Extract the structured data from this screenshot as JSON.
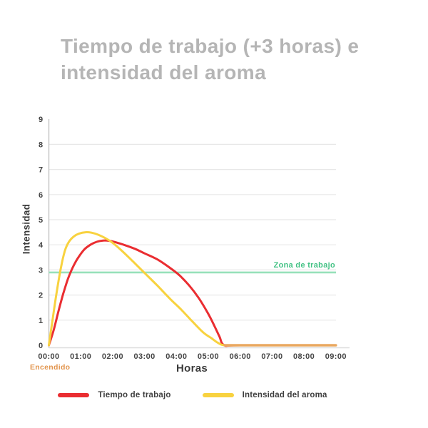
{
  "title": "Tiempo de trabajo (+3 horas) e\nintensidad del aroma",
  "colors": {
    "title_text": "#b5b5b5",
    "axis_text": "#3b3b3b",
    "tick_text": "#454545",
    "gridline": "#e8e8e8",
    "axis_line": "#c4c4c4"
  },
  "chart_data": {
    "type": "line",
    "title": "Tiempo de trabajo (+3 horas) e intensidad del aroma",
    "xlabel": "Horas",
    "ylabel": "Intensidad",
    "xlim": [
      0,
      9
    ],
    "ylim": [
      0,
      9
    ],
    "grid": "horizontal",
    "legend_position": "bottom",
    "x_tick_hours": [
      0,
      1,
      2,
      3,
      4,
      5,
      6,
      7,
      8,
      9
    ],
    "x_tick_labels": [
      "00:00",
      "01:00",
      "02:00",
      "03:00",
      "04:00",
      "05:00",
      "06:00",
      "07:00",
      "08:00",
      "09:00"
    ],
    "y_ticks": [
      0,
      1,
      2,
      3,
      4,
      5,
      6,
      7,
      8,
      9
    ],
    "series": [
      {
        "name": "Tiempo de trabajo",
        "color": "#ea2d31",
        "x": [
          0,
          0.15,
          0.3,
          0.45,
          0.6,
          0.75,
          0.9,
          1.1,
          1.3,
          1.5,
          1.7,
          1.9,
          2.1,
          2.4,
          2.7,
          3.0,
          3.4,
          3.8,
          4.1,
          4.4,
          4.7,
          5.0,
          5.2,
          5.35,
          5.5,
          6.0,
          9.0
        ],
        "y": [
          0,
          0.6,
          1.35,
          2.05,
          2.65,
          3.1,
          3.45,
          3.8,
          4.0,
          4.12,
          4.17,
          4.16,
          4.1,
          3.98,
          3.84,
          3.66,
          3.42,
          3.08,
          2.78,
          2.38,
          1.88,
          1.25,
          0.75,
          0.35,
          0,
          0,
          0
        ]
      },
      {
        "name": "Intensidad del aroma",
        "color": "#f8d23f",
        "x": [
          0,
          0.12,
          0.25,
          0.38,
          0.5,
          0.62,
          0.78,
          0.95,
          1.15,
          1.35,
          1.55,
          1.75,
          2.0,
          2.3,
          2.65,
          3.0,
          3.4,
          3.8,
          4.15,
          4.5,
          4.85,
          5.1,
          5.3,
          5.5,
          6.0,
          9.0
        ],
        "y": [
          0,
          1.05,
          2.15,
          3.1,
          3.75,
          4.1,
          4.33,
          4.45,
          4.5,
          4.48,
          4.4,
          4.28,
          4.08,
          3.75,
          3.32,
          2.88,
          2.38,
          1.85,
          1.42,
          0.95,
          0.5,
          0.28,
          0.1,
          0,
          0,
          0
        ]
      }
    ],
    "overlap_segment": {
      "x_start": 5.52,
      "x_end": 9.0,
      "y": 0,
      "color": "#e9a75f"
    },
    "annotations": {
      "zona_label": "Zona de trabajo",
      "zona_value": 2.9,
      "zona_text_color": "#41c183",
      "zona_line_color": "#97e1ba",
      "encendido_label": "Encendido",
      "encendido_color": "#e2954e",
      "encendido_hour": 0
    }
  },
  "legend": {
    "items": [
      {
        "label": "Tiempo de trabajo",
        "color": "#ea2d31"
      },
      {
        "label": "Intensidad del aroma",
        "color": "#f8d23f"
      }
    ]
  }
}
